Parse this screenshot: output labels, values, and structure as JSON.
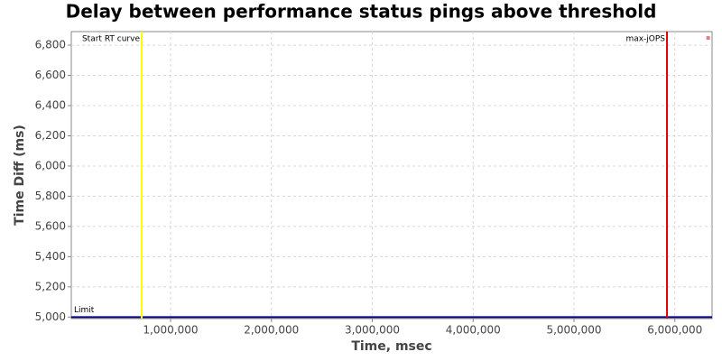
{
  "chart_data": {
    "type": "scatter",
    "title": "Delay between performance status pings above threshold",
    "xlabel": "Time, msec",
    "ylabel": "Time Diff (ms)",
    "xlim": [
      16000,
      6369000
    ],
    "ylim": [
      4990,
      6890
    ],
    "xticks": [
      {
        "value": 1000000,
        "label": "1,000,000"
      },
      {
        "value": 2000000,
        "label": "2,000,000"
      },
      {
        "value": 3000000,
        "label": "3,000,000"
      },
      {
        "value": 4000000,
        "label": "4,000,000"
      },
      {
        "value": 5000000,
        "label": "5,000,000"
      },
      {
        "value": 6000000,
        "label": "6,000,000"
      }
    ],
    "yticks": [
      {
        "value": 5000,
        "label": "5,000"
      },
      {
        "value": 5200,
        "label": "5,200"
      },
      {
        "value": 5400,
        "label": "5,400"
      },
      {
        "value": 5600,
        "label": "5,600"
      },
      {
        "value": 5800,
        "label": "5,800"
      },
      {
        "value": 6000,
        "label": "6,000"
      },
      {
        "value": 6200,
        "label": "6,200"
      },
      {
        "value": 6400,
        "label": "6,400"
      },
      {
        "value": 6600,
        "label": "6,600"
      },
      {
        "value": 6800,
        "label": "6,800"
      }
    ],
    "grid": true,
    "series": [
      {
        "color": "#e08080",
        "x": [
          6330000
        ],
        "values": [
          6848
        ]
      }
    ],
    "vlines": [
      {
        "label": "Start RT curve",
        "value": 714000,
        "color": "#ffff00"
      },
      {
        "label": "max-jOPS",
        "value": 5922000,
        "color": "#dd0000"
      }
    ],
    "hlines": [
      {
        "label": "Limit",
        "value": 5000,
        "color": "#000080"
      }
    ]
  }
}
